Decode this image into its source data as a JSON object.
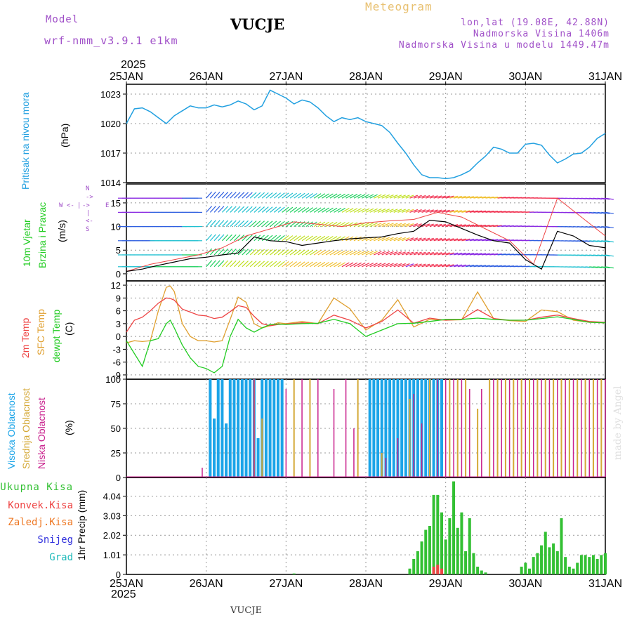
{
  "header": {
    "model_label": "Model",
    "model_name": "wrf-nmm_v3.9.1  e1km",
    "station": "VUCJE",
    "title": "Meteogram",
    "coords": "lon,lat (19.08E, 42.88N)",
    "elevation": "Nadmorska Visina 1406m",
    "model_elevation": "Nadmorska Visina u modelu 1449.47m",
    "year_top": "2025",
    "year_bottom": "2025",
    "footer_station": "VUCJE",
    "credit": "made by Angel"
  },
  "colors": {
    "pressure": "#22a0e0",
    "temp2m": "#ee4444",
    "sfc_temp": "#e0a030",
    "dewpt": "#22cc22",
    "high_cloud": "#1aa4e8",
    "mid_cloud": "#d4a836",
    "low_cloud": "#c8208c",
    "total_precip": "#33c033",
    "conv_precip": "#ee4444",
    "freezing": "#ee7722",
    "snow": "#3333dd",
    "hail": "#22bbbb",
    "wind_speed": "#000000",
    "gust": "#ee4444"
  },
  "chart_data": [
    {
      "type": "line",
      "name": "pressure",
      "labels": [
        "Pritisak na nivou mora",
        "(hPa)"
      ],
      "x_ticks": [
        "25JAN",
        "26JAN",
        "27JAN",
        "28JAN",
        "29JAN",
        "30JAN",
        "31JAN"
      ],
      "y_ticks": [
        "1014",
        "1017",
        "1020",
        "1023"
      ],
      "ylim": [
        1014,
        1024
      ],
      "grid": true,
      "series": [
        {
          "name": "Pritisak na nivou mora",
          "x": [
            0,
            0.1,
            0.2,
            0.3,
            0.4,
            0.5,
            0.6,
            0.7,
            0.8,
            0.9,
            1,
            1.1,
            1.2,
            1.3,
            1.4,
            1.5,
            1.6,
            1.7,
            1.8,
            1.9,
            2,
            2.1,
            2.2,
            2.3,
            2.4,
            2.5,
            2.6,
            2.7,
            2.8,
            2.9,
            3,
            3.1,
            3.2,
            3.3,
            3.4,
            3.5,
            3.6,
            3.7,
            3.8,
            3.9,
            4,
            4.1,
            4.2,
            4.3,
            4.4,
            4.5,
            4.6,
            4.7,
            4.8,
            4.9,
            5,
            5.1,
            5.2,
            5.3,
            5.4,
            5.5,
            5.6,
            5.7,
            5.8,
            5.9,
            6
          ],
          "values": [
            1020,
            1021.5,
            1021.6,
            1021.2,
            1020.6,
            1020,
            1020.8,
            1021.3,
            1021.8,
            1021.6,
            1021.6,
            1021.9,
            1021.7,
            1021.9,
            1022.3,
            1022,
            1021.4,
            1021.8,
            1023.4,
            1023,
            1022.6,
            1022,
            1022.4,
            1022.2,
            1021.6,
            1020.8,
            1020.2,
            1020.6,
            1020.4,
            1020.6,
            1020.2,
            1020,
            1019.8,
            1019.1,
            1018,
            1017,
            1015.8,
            1014.8,
            1014.5,
            1014.5,
            1014.4,
            1014.5,
            1014.8,
            1015.2,
            1016,
            1016.7,
            1017.6,
            1017.4,
            1017,
            1017,
            1017.9,
            1018,
            1017.8,
            1016.8,
            1016,
            1016.4,
            1016.9,
            1017,
            1017.6,
            1018.5,
            1019
          ]
        }
      ]
    },
    {
      "type": "line",
      "name": "wind",
      "labels": [
        "10m Vjetar",
        "Brzina i Pravac",
        "(m/s)"
      ],
      "legend_compass": [
        "W",
        "<-",
        "|",
        "->",
        "E",
        "S",
        "<-",
        "|",
        "->",
        "N"
      ],
      "y_ticks": [
        "0",
        "5",
        "10",
        "15"
      ],
      "ylim": [
        -1.5,
        19
      ],
      "grid": true,
      "series": [
        {
          "name": "brzina",
          "x": [
            0,
            0.2,
            0.4,
            0.6,
            0.8,
            1,
            1.2,
            1.4,
            1.6,
            1.8,
            2,
            2.2,
            2.4,
            2.6,
            2.8,
            3,
            3.2,
            3.4,
            3.6,
            3.8,
            4,
            4.2,
            4.4,
            4.6,
            4.8,
            5,
            5.2,
            5.4,
            5.6,
            5.8,
            6
          ],
          "values": [
            0.5,
            1,
            1.8,
            2.5,
            3.2,
            3.5,
            4,
            4.4,
            7.8,
            7,
            6.8,
            6,
            6.5,
            7,
            7.4,
            7.6,
            7.8,
            8.5,
            9,
            11.3,
            11,
            9.6,
            8.2,
            7,
            6.5,
            3,
            1,
            9,
            8,
            6,
            5.5
          ]
        },
        {
          "name": "udar",
          "x": [
            0,
            0.3,
            0.6,
            0.9,
            1.2,
            1.5,
            1.8,
            2.1,
            2.4,
            2.7,
            3,
            3.3,
            3.6,
            3.9,
            4.2,
            4.5,
            4.8,
            5.1,
            5.4,
            5.7,
            6
          ],
          "values": [
            0.5,
            2,
            3,
            4,
            5.5,
            8,
            9.5,
            11,
            10.5,
            10,
            10.8,
            11.2,
            11.5,
            13,
            12,
            9.5,
            7,
            2,
            16,
            12,
            8
          ]
        }
      ]
    },
    {
      "type": "line",
      "name": "temperature",
      "labels": [
        "2m Temp",
        "SFC Temp",
        "dewpt Temp",
        "(C)"
      ],
      "y_ticks": [
        "-9",
        "-6",
        "-3",
        "0",
        "3",
        "6",
        "9",
        "12"
      ],
      "ylim": [
        -10,
        13
      ],
      "grid": true,
      "series": [
        {
          "name": "2m Temp",
          "x": [
            0,
            0.1,
            0.2,
            0.3,
            0.4,
            0.5,
            0.55,
            0.6,
            0.7,
            0.8,
            0.9,
            1,
            1.1,
            1.2,
            1.3,
            1.4,
            1.5,
            1.6,
            1.7,
            1.8,
            1.9,
            2,
            2.2,
            2.4,
            2.6,
            2.8,
            3,
            3.2,
            3.4,
            3.6,
            3.8,
            4,
            4.2,
            4.4,
            4.6,
            4.8,
            5,
            5.2,
            5.4,
            5.6,
            5.8,
            6
          ],
          "values": [
            1,
            3.8,
            4.5,
            6,
            7.8,
            9,
            8.9,
            8.5,
            6.4,
            5.7,
            5,
            4.8,
            4.2,
            4.5,
            5.8,
            7.2,
            6.8,
            4.7,
            3,
            2.5,
            2.8,
            2.9,
            3.2,
            3,
            5,
            3.8,
            2,
            3.5,
            6.2,
            3.1,
            4.3,
            3.8,
            4,
            6.3,
            4.2,
            3.8,
            3.8,
            4.5,
            5,
            4.2,
            3.5,
            3.3
          ]
        },
        {
          "name": "SFC Temp",
          "x": [
            0,
            0.1,
            0.2,
            0.3,
            0.4,
            0.5,
            0.55,
            0.6,
            0.7,
            0.8,
            0.9,
            1,
            1.1,
            1.2,
            1.3,
            1.4,
            1.5,
            1.6,
            1.7,
            1.8,
            1.9,
            2,
            2.2,
            2.4,
            2.6,
            2.8,
            3,
            3.2,
            3.4,
            3.6,
            3.8,
            4,
            4.2,
            4.4,
            4.6,
            4.8,
            5,
            5.2,
            5.4,
            5.6,
            5.8,
            6
          ],
          "values": [
            -1.5,
            -1,
            -1.2,
            -1,
            6,
            11.5,
            11.8,
            10.5,
            3,
            0,
            -1,
            -1,
            -1.3,
            -1,
            4,
            9.2,
            8,
            3,
            2,
            2.5,
            3.2,
            3,
            3.5,
            3,
            9,
            6.5,
            1.5,
            3.8,
            8.6,
            2.2,
            4,
            3.8,
            3.9,
            10.4,
            4.2,
            3.7,
            3.5,
            6.2,
            5.8,
            3.8,
            3.3,
            3.2
          ]
        },
        {
          "name": "dewpt Temp",
          "x": [
            0,
            0.1,
            0.2,
            0.3,
            0.4,
            0.5,
            0.55,
            0.6,
            0.7,
            0.8,
            0.9,
            1,
            1.1,
            1.2,
            1.3,
            1.4,
            1.5,
            1.6,
            1.7,
            1.8,
            1.9,
            2,
            2.2,
            2.4,
            2.6,
            2.8,
            3,
            3.2,
            3.4,
            3.6,
            3.8,
            4,
            4.2,
            4.4,
            4.6,
            4.8,
            5,
            5.2,
            5.4,
            5.6,
            5.8,
            6
          ],
          "values": [
            -1,
            -4,
            -7,
            -1,
            -0.5,
            3,
            3.8,
            2,
            -2,
            -5,
            -7,
            -7.5,
            -8.5,
            -7,
            0,
            4,
            2,
            1,
            2,
            2.8,
            2.9,
            2.8,
            3,
            3.1,
            4,
            3,
            0,
            1.5,
            3,
            3.1,
            3.5,
            4,
            4,
            4.3,
            4,
            3.8,
            3.8,
            4.2,
            4.6,
            4,
            3.3,
            3.2
          ]
        }
      ]
    },
    {
      "type": "bar",
      "name": "clouds",
      "labels": [
        "Visoka Oblacnost",
        "Srednja Oblacnost",
        "Niska Oblacnost",
        "(%)"
      ],
      "y_ticks": [
        "0",
        "25",
        "50",
        "75",
        "100"
      ],
      "ylim": [
        0,
        100
      ],
      "grid": true,
      "series": [
        {
          "name": "Visoka Oblacnost",
          "x": [
            1.05,
            1.1,
            1.15,
            1.2,
            1.25,
            1.3,
            1.35,
            1.4,
            1.45,
            1.5,
            1.55,
            1.6,
            1.65,
            1.7,
            1.75,
            1.8,
            1.85,
            1.9,
            1.95,
            3.05,
            3.1,
            3.15,
            3.2,
            3.25,
            3.3,
            3.35,
            3.4,
            3.45,
            3.5,
            3.55,
            3.6,
            3.65,
            3.7,
            3.75,
            3.8,
            3.85,
            3.9,
            3.95
          ],
          "values": [
            100,
            60,
            100,
            100,
            55,
            100,
            100,
            100,
            100,
            100,
            100,
            100,
            40,
            100,
            100,
            100,
            100,
            100,
            100,
            100,
            100,
            100,
            100,
            100,
            100,
            100,
            100,
            100,
            100,
            100,
            100,
            100,
            100,
            100,
            100,
            100,
            100,
            100
          ]
        },
        {
          "name": "Srednja Oblacnost",
          "x": [
            1.6,
            1.7,
            2.1,
            2.3,
            2.9,
            3.2,
            3.55,
            3.8,
            4.05,
            4.15,
            4.25,
            4.4,
            4.55,
            4.65,
            4.75,
            4.85,
            4.95,
            5.05,
            5.15,
            5.25,
            5.35,
            5.45,
            5.55,
            5.65,
            5.75,
            5.85,
            5.95
          ],
          "values": [
            100,
            60,
            100,
            100,
            100,
            25,
            80,
            100,
            100,
            100,
            100,
            70,
            100,
            100,
            100,
            100,
            100,
            100,
            100,
            100,
            100,
            100,
            100,
            100,
            100,
            100,
            100
          ]
        },
        {
          "name": "Niska Oblacnost",
          "x": [
            0.95,
            1.6,
            2.0,
            2.2,
            2.4,
            2.6,
            2.75,
            2.85,
            3.25,
            3.4,
            3.6,
            3.7,
            3.9,
            4.0,
            4.1,
            4.2,
            4.3,
            4.45,
            4.6,
            4.7,
            4.8,
            4.9,
            5.0,
            5.1,
            5.2,
            5.3,
            5.4,
            5.5,
            5.6,
            5.7,
            5.8,
            5.9,
            6.0
          ],
          "values": [
            10,
            100,
            90,
            100,
            100,
            90,
            100,
            50,
            20,
            40,
            85,
            55,
            100,
            100,
            100,
            100,
            90,
            90,
            100,
            100,
            100,
            100,
            100,
            100,
            100,
            100,
            100,
            100,
            100,
            100,
            100,
            100,
            100
          ]
        }
      ]
    },
    {
      "type": "bar",
      "name": "precipitation",
      "labels": [
        "1hr Precip (mm)"
      ],
      "legend": [
        "Ukupna Kisa",
        "Konvek.Kisa",
        "Zaledj.Kisa",
        "Snijeg",
        "Grad"
      ],
      "y_ticks": [
        "0",
        "1.01",
        "2.02",
        "3.03",
        "4.04"
      ],
      "ylim": [
        0,
        5
      ],
      "grid": true,
      "series": [
        {
          "name": "Ukupna Kisa",
          "x": [
            2.1,
            3.55,
            3.6,
            3.65,
            3.7,
            3.75,
            3.8,
            3.85,
            3.9,
            3.95,
            4.0,
            4.05,
            4.1,
            4.15,
            4.2,
            4.25,
            4.3,
            4.35,
            4.4,
            4.45,
            4.5,
            4.95,
            5.0,
            5.05,
            5.1,
            5.15,
            5.2,
            5.25,
            5.3,
            5.35,
            5.4,
            5.45,
            5.5,
            5.55,
            5.6,
            5.65,
            5.7,
            5.75,
            5.8,
            5.85,
            5.9,
            5.95,
            6.0
          ],
          "values": [
            0.05,
            0.3,
            0.8,
            1.2,
            1.7,
            2.3,
            2.5,
            4.1,
            4.1,
            3.2,
            1.8,
            2.9,
            4.8,
            2.4,
            3.2,
            1.2,
            2.9,
            1.1,
            0.4,
            0.2,
            0.1,
            0.4,
            0.6,
            0.3,
            0.9,
            1.1,
            1.5,
            2.2,
            1.4,
            1.6,
            1.2,
            2.9,
            0.9,
            0.4,
            0.3,
            0.6,
            1,
            1,
            0.9,
            1,
            0.8,
            1,
            1.1
          ]
        },
        {
          "name": "Konvek.Kisa",
          "x": [
            3.85,
            3.9,
            3.95
          ],
          "values": [
            0.4,
            0.5,
            0.3
          ]
        }
      ]
    }
  ]
}
